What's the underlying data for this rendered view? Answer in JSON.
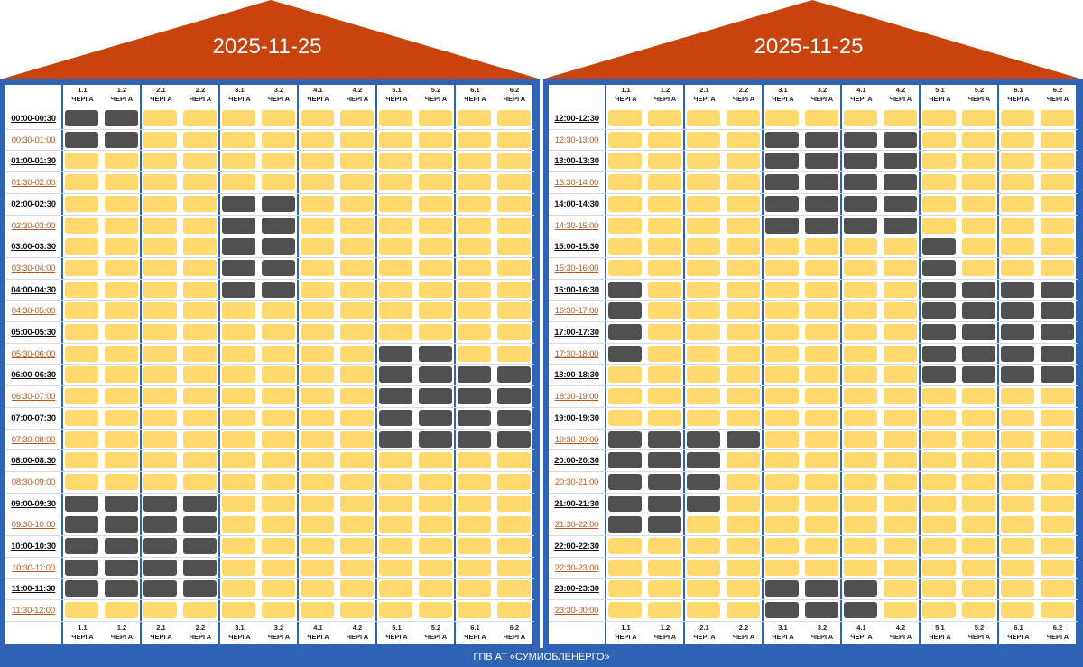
{
  "footer": "ГПВ АТ «СУМИОБЛЕНЕРГО»",
  "colors": {
    "roof": "#c9430d",
    "frame": "#2f63b5",
    "power_on": "#ffd96e",
    "power_off": "#505050"
  },
  "queues": [
    {
      "num": "1.1",
      "word": "ЧЕРГА"
    },
    {
      "num": "1.2",
      "word": "ЧЕРГА"
    },
    {
      "num": "2.1",
      "word": "ЧЕРГА"
    },
    {
      "num": "2.2",
      "word": "ЧЕРГА"
    },
    {
      "num": "3.1",
      "word": "ЧЕРГА"
    },
    {
      "num": "3.2",
      "word": "ЧЕРГА"
    },
    {
      "num": "4.1",
      "word": "ЧЕРГА"
    },
    {
      "num": "4.2",
      "word": "ЧЕРГА"
    },
    {
      "num": "5.1",
      "word": "ЧЕРГА"
    },
    {
      "num": "5.2",
      "word": "ЧЕРГА"
    },
    {
      "num": "6.1",
      "word": "ЧЕРГА"
    },
    {
      "num": "6.2",
      "word": "ЧЕРГА"
    }
  ],
  "panels": [
    {
      "date": "2025-11-25",
      "times": [
        "00:00-00:30",
        "00:30-01:00",
        "01:00-01:30",
        "01:30-02:00",
        "02:00-02:30",
        "02:30-03:00",
        "03:00-03:30",
        "03:30-04:00",
        "04:00-04:30",
        "04:30-05:00",
        "05:00-05:30",
        "05:30-06:00",
        "06:00-06:30",
        "06:30-07:00",
        "07:00-07:30",
        "07:30-08:00",
        "08:00-08:30",
        "08:30-09:00",
        "09:00-09:30",
        "09:30-10:00",
        "10:00-10:30",
        "10:30-11:00",
        "11:00-11:30",
        "11:30-12:00"
      ],
      "grid": [
        "110000000000",
        "110000000000",
        "000000000000",
        "000000000000",
        "000011000000",
        "000011000000",
        "000011000000",
        "000011000000",
        "000011000000",
        "000000000000",
        "000000000000",
        "000000001100",
        "000000001111",
        "000000001111",
        "000000001111",
        "000000001111",
        "000000000000",
        "000000000000",
        "111100000000",
        "111100000000",
        "111100000000",
        "111100000000",
        "111100000000",
        "000000000000"
      ]
    },
    {
      "date": "2025-11-25",
      "times": [
        "12:00-12:30",
        "12:30-13:00",
        "13:00-13:30",
        "13:30-14:00",
        "14:00-14:30",
        "14:30-15:00",
        "15:00-15:30",
        "15:30-16:00",
        "16:00-16:30",
        "16:30-17:00",
        "17:00-17:30",
        "17:30-18:00",
        "18:00-18:30",
        "18:30-19:00",
        "19:00-19:30",
        "19:30-20:00",
        "20:00-20:30",
        "20:30-21:00",
        "21:00-21:30",
        "21:30-22:00",
        "22:00-22:30",
        "22:30-23:00",
        "23:00-23:30",
        "23:30-00:00"
      ],
      "grid": [
        "000000000000",
        "000011110000",
        "000011110000",
        "000011110000",
        "000011110000",
        "000011110000",
        "000000001000",
        "000000001000",
        "100000001111",
        "100000001111",
        "100000001111",
        "100000001111",
        "000000001111",
        "000000000000",
        "000000000000",
        "111100000000",
        "111000000000",
        "111000000000",
        "111000000000",
        "110000000000",
        "000000000000",
        "000000000000",
        "000011100000",
        "000011100000"
      ]
    }
  ]
}
